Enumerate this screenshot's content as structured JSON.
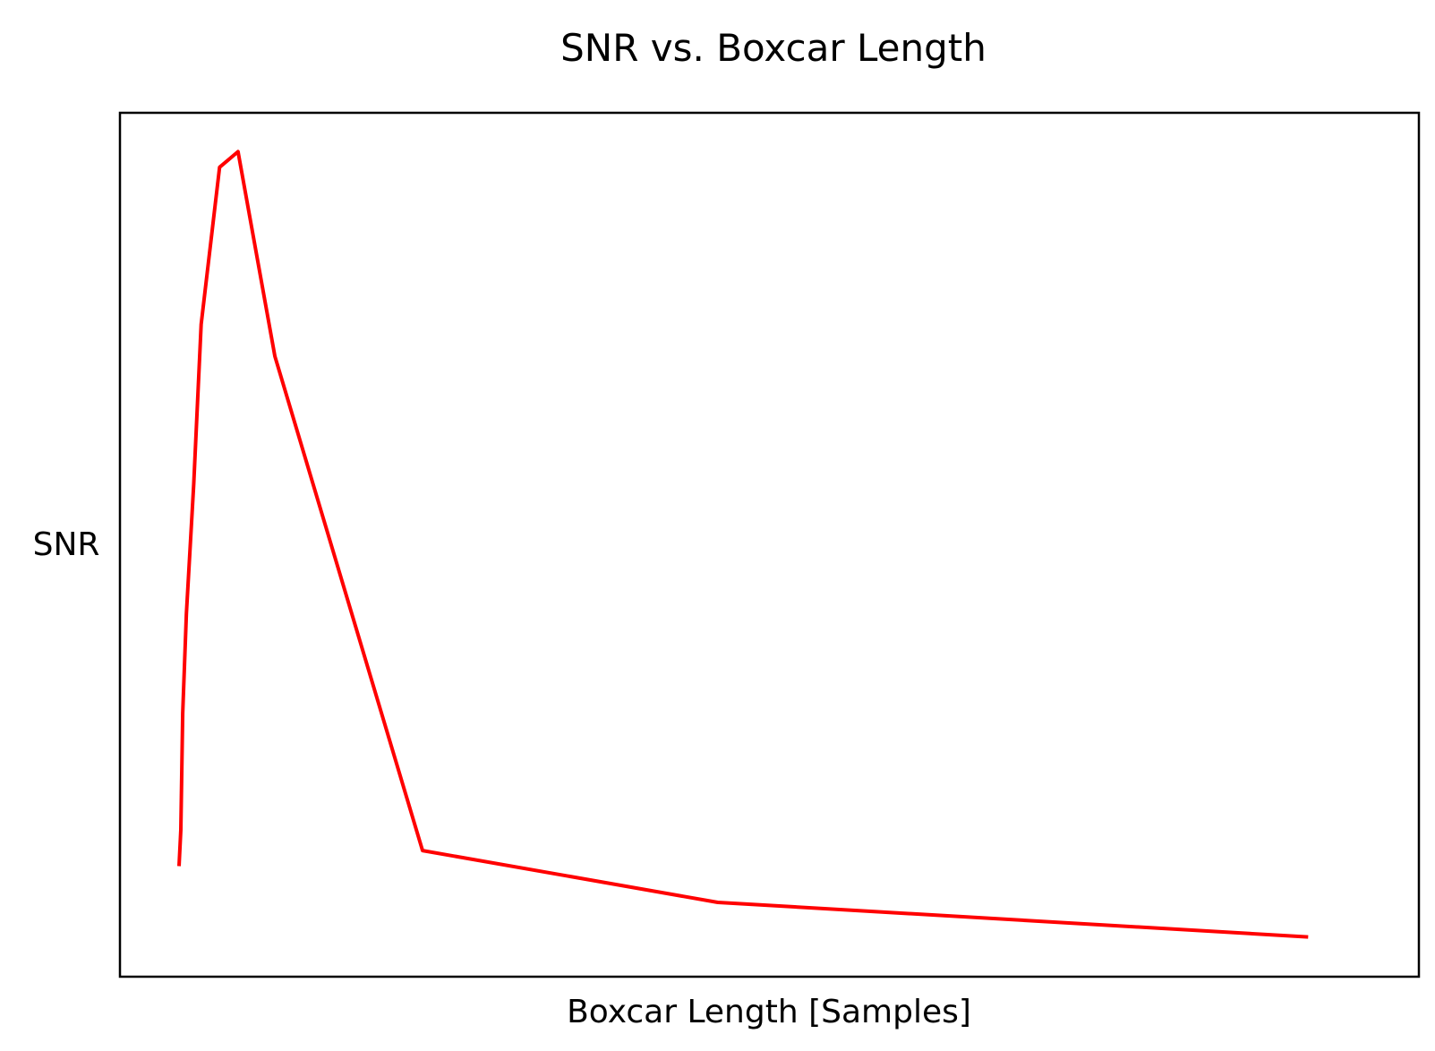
{
  "chart_data": {
    "type": "line",
    "title": "SNR vs. Boxcar Length",
    "xlabel": "Boxcar Length [Samples]",
    "ylabel": "SNR",
    "xlim": [
      -2,
      350
    ],
    "ylim": [
      0,
      1.0
    ],
    "x_ticks_shown": false,
    "y_ticks_shown": false,
    "grid": false,
    "legend": "none",
    "series": [
      {
        "color": "#ff0000",
        "x": [
          14,
          14.5,
          15,
          16,
          18,
          20,
          25,
          30,
          40,
          80,
          160,
          320
        ],
        "y": [
          0.128,
          0.17,
          0.305,
          0.42,
          0.57,
          0.755,
          0.937,
          0.955,
          0.718,
          0.146,
          0.086,
          0.046
        ]
      }
    ]
  }
}
